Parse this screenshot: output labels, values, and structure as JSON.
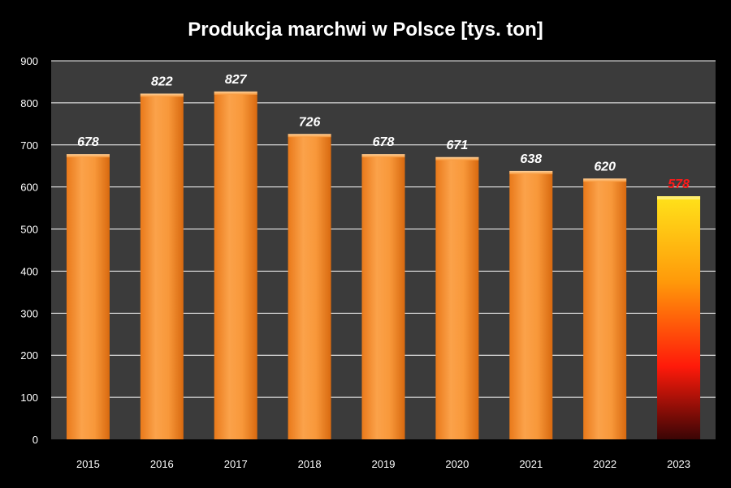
{
  "chart_data": {
    "type": "bar",
    "title": "Produkcja marchwi w Polsce [tys. ton]",
    "categories": [
      "2015",
      "2016",
      "2017",
      "2018",
      "2019",
      "2020",
      "2021",
      "2022",
      "2023"
    ],
    "values": [
      678,
      822,
      827,
      726,
      678,
      671,
      638,
      620,
      578
    ],
    "data_labels": [
      "678",
      "822",
      "827",
      "726",
      "678",
      "671",
      "638",
      "620",
      "578"
    ],
    "ylim": [
      0,
      900
    ],
    "yticks": [
      "0",
      "100",
      "200",
      "300",
      "400",
      "500",
      "600",
      "700",
      "800",
      "900"
    ],
    "grid": true,
    "legend": "none",
    "colors": {
      "background": "#000000",
      "plot_area": "#3b3b3b",
      "gridline": "#ffffff",
      "bar": "#f7931e",
      "bar_highlight": "#ffd21a",
      "highlight_label": "#ff1a1a"
    }
  }
}
